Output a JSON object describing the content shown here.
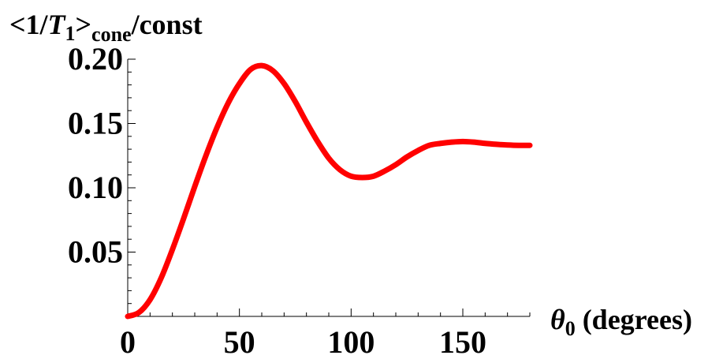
{
  "chart_data": {
    "type": "line",
    "title": "",
    "ylabel": {
      "open": "<1/",
      "symbol": "T",
      "symbol_sub": "1",
      "close": ">",
      "subscript": "cone",
      "suffix": "/const"
    },
    "xlabel": {
      "symbol": "θ",
      "symbol_sub": "0",
      "suffix": " (degrees)"
    },
    "xlim": [
      0,
      180
    ],
    "ylim": [
      0,
      0.2
    ],
    "x_ticks": [
      0,
      50,
      100,
      150
    ],
    "x_tick_labels": [
      "0",
      "50",
      "100",
      "150"
    ],
    "y_ticks": [
      0.05,
      0.1,
      0.15,
      0.2
    ],
    "y_tick_labels": [
      "0.05",
      "0.10",
      "0.15",
      "0.20"
    ],
    "grid": false,
    "series": [
      {
        "color": "#ff0000",
        "x": [
          0,
          5,
          10,
          15,
          20,
          25,
          30,
          35,
          40,
          45,
          50,
          55,
          60,
          65,
          70,
          75,
          80,
          85,
          90,
          95,
          100,
          105,
          110,
          115,
          120,
          125,
          130,
          135,
          140,
          145,
          150,
          155,
          160,
          165,
          170,
          175,
          180
        ],
        "y": [
          0,
          0.003,
          0.013,
          0.03,
          0.052,
          0.076,
          0.101,
          0.125,
          0.147,
          0.166,
          0.181,
          0.192,
          0.195,
          0.191,
          0.181,
          0.167,
          0.151,
          0.136,
          0.123,
          0.114,
          0.109,
          0.108,
          0.109,
          0.113,
          0.118,
          0.124,
          0.129,
          0.133,
          0.1345,
          0.1355,
          0.136,
          0.1355,
          0.1345,
          0.1338,
          0.1333,
          0.133,
          0.133
        ]
      }
    ]
  }
}
